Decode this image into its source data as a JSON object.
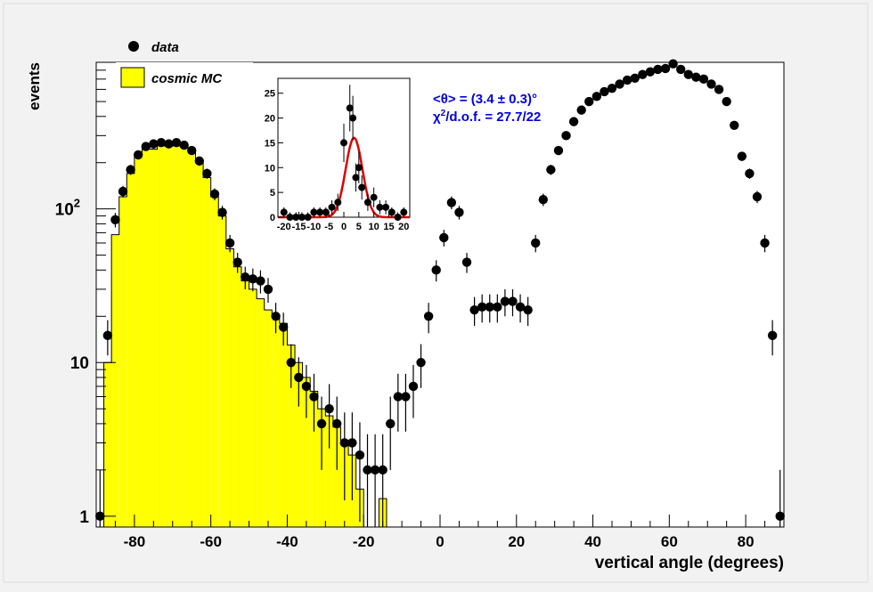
{
  "chart_data": {
    "type": "histogram",
    "xlabel": "vertical angle (degrees)",
    "ylabel": "events",
    "xlim": [
      -90,
      90
    ],
    "ylim": [
      0.85,
      900
    ],
    "yscale": "log",
    "bin_width": 2,
    "x_ticks": [
      "-80",
      "-60",
      "-40",
      "-20",
      "0",
      "20",
      "40",
      "60",
      "80"
    ],
    "x_tick_values": [
      -80,
      -60,
      -40,
      -20,
      0,
      20,
      40,
      60,
      80
    ],
    "y_ticks": [
      {
        "value": 1,
        "base": "1",
        "exp": ""
      },
      {
        "value": 10,
        "base": "10",
        "exp": ""
      },
      {
        "value": 100,
        "base": "10",
        "exp": "2"
      }
    ],
    "legend": {
      "placement": "top-left",
      "entries": [
        {
          "label": "data",
          "style": "marker"
        },
        {
          "label": "cosmic MC",
          "style": "fill"
        }
      ]
    },
    "colors": {
      "mc_fill": "#ffff00",
      "mc_line": "#000000",
      "marker": "#000000",
      "fit": "#dd0000",
      "annotation": "#0000dd",
      "frame_bg": "#f2f2f2",
      "plot_bg": "#ffffff"
    },
    "annotation": {
      "line1": "<θ> = (3.4 ± 0.3)°",
      "line2_base": "χ",
      "line2_sup": "2",
      "line2_rest": "/d.o.f. = 27.7/22"
    },
    "series": [
      {
        "name": "cosmic MC",
        "style": "filled-histogram",
        "x": [
          -89,
          -87,
          -85,
          -83,
          -81,
          -79,
          -77,
          -75,
          -73,
          -71,
          -69,
          -67,
          -65,
          -63,
          -61,
          -59,
          -57,
          -55,
          -53,
          -51,
          -49,
          -47,
          -45,
          -43,
          -41,
          -39,
          -37,
          -35,
          -33,
          -31,
          -29,
          -27,
          -25,
          -23,
          -21,
          -19,
          -17,
          -15,
          -13,
          -11,
          -9,
          -7,
          -5,
          -3,
          -1,
          1,
          3,
          5,
          7,
          9,
          11,
          13,
          15,
          17,
          19,
          21,
          23,
          25,
          27,
          29,
          31,
          33,
          35,
          37,
          39,
          41,
          43,
          45,
          47,
          49,
          51,
          53,
          55,
          57,
          59,
          61,
          63,
          65,
          67,
          69,
          71,
          73,
          75,
          77,
          79,
          81,
          83,
          85,
          87,
          89
        ],
        "values": [
          0,
          10,
          68,
          120,
          170,
          220,
          250,
          245,
          260,
          255,
          260,
          255,
          240,
          200,
          160,
          120,
          90,
          55,
          42,
          34,
          30,
          26,
          22,
          20,
          18,
          13,
          10,
          8,
          6.5,
          5,
          4.5,
          3.8,
          3,
          2.5,
          1.5,
          0,
          0,
          1.3,
          0,
          0,
          0,
          0,
          0,
          0,
          0,
          0,
          0,
          0,
          0,
          0,
          0,
          0,
          0,
          0,
          0,
          0,
          0,
          0,
          0,
          0,
          0,
          0,
          0,
          0,
          0,
          0,
          0,
          0,
          0,
          0,
          0,
          0,
          0,
          0,
          0,
          0,
          0,
          0,
          0,
          0,
          0,
          0,
          0,
          0,
          0,
          0,
          0,
          0,
          0,
          0
        ]
      },
      {
        "name": "data",
        "style": "points-with-errors",
        "x": [
          -89,
          -87,
          -85,
          -83,
          -81,
          -79,
          -77,
          -75,
          -73,
          -71,
          -69,
          -67,
          -65,
          -63,
          -61,
          -59,
          -57,
          -55,
          -53,
          -51,
          -49,
          -47,
          -45,
          -43,
          -41,
          -39,
          -37,
          -35,
          -33,
          -31,
          -29,
          -27,
          -25,
          -23,
          -21,
          -19,
          -17,
          -15,
          -13,
          -11,
          -9,
          -7,
          -5,
          -3,
          -1,
          1,
          3,
          5,
          7,
          9,
          11,
          13,
          15,
          17,
          19,
          21,
          23,
          25,
          27,
          29,
          31,
          33,
          35,
          37,
          39,
          41,
          43,
          45,
          47,
          49,
          51,
          53,
          55,
          57,
          59,
          61,
          63,
          65,
          67,
          69,
          71,
          73,
          75,
          77,
          79,
          81,
          83,
          85,
          87,
          89
        ],
        "values": [
          1,
          15,
          85,
          130,
          180,
          225,
          255,
          265,
          270,
          265,
          270,
          260,
          240,
          205,
          170,
          125,
          95,
          60,
          45,
          36,
          35,
          34,
          30,
          20,
          17,
          10,
          8,
          7,
          6,
          4,
          5,
          4,
          3,
          3,
          2.5,
          2,
          2,
          2,
          4,
          6,
          6,
          7,
          10,
          20,
          40,
          65,
          110,
          95,
          45,
          22,
          23,
          23,
          23,
          25,
          25,
          23,
          22,
          60,
          115,
          180,
          240,
          300,
          370,
          440,
          500,
          540,
          580,
          610,
          650,
          690,
          710,
          750,
          780,
          810,
          820,
          880,
          810,
          750,
          720,
          700,
          650,
          600,
          500,
          350,
          220,
          170,
          120,
          60,
          15,
          1
        ]
      }
    ],
    "inset": {
      "type": "histogram",
      "xlim": [
        -22,
        22
      ],
      "ylim": [
        0,
        28
      ],
      "x_ticks": [
        "-20",
        "-15",
        "-10",
        "-5",
        "0",
        "5",
        "10",
        "15",
        "20"
      ],
      "x_tick_values": [
        -20,
        -15,
        -10,
        -5,
        0,
        5,
        10,
        15,
        20
      ],
      "y_ticks": [
        "0",
        "5",
        "10",
        "15",
        "20",
        "25"
      ],
      "y_tick_values": [
        0,
        5,
        10,
        15,
        20,
        25
      ],
      "data_x": [
        -20,
        -18,
        -16,
        -14,
        -12,
        -10,
        -8,
        -6,
        -4,
        -2,
        0,
        2,
        3,
        4,
        5,
        6,
        8,
        10,
        12,
        14,
        16,
        18,
        20
      ],
      "data_y": [
        1,
        0,
        0,
        0,
        0,
        1,
        1,
        1,
        2,
        3,
        15,
        22,
        20,
        8,
        10,
        6,
        3,
        4,
        2,
        2,
        1,
        0,
        1
      ],
      "fit": {
        "type": "gaussian",
        "mean": 3.4,
        "sigma": 2.8,
        "amplitude": 16
      }
    }
  }
}
